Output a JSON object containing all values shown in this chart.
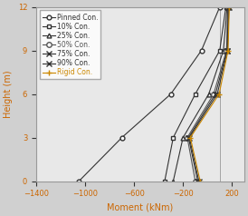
{
  "series": [
    {
      "label": "Pinned Con.",
      "marker": "o",
      "ms": 3.5,
      "mfc": "white",
      "color": "#333333",
      "heights": [
        0,
        3,
        6,
        9,
        12
      ],
      "moments": [
        -1050,
        -700,
        -300,
        -50,
        100
      ]
    },
    {
      "label": "10% Con.",
      "marker": "s",
      "ms": 3.5,
      "mfc": "white",
      "color": "#333333",
      "heights": [
        0,
        3,
        6,
        9,
        12
      ],
      "moments": [
        -350,
        -280,
        -100,
        100,
        150
      ]
    },
    {
      "label": "25% Con.",
      "marker": "^",
      "ms": 3.5,
      "mfc": "white",
      "color": "#333333",
      "heights": [
        0,
        3,
        6,
        9,
        12
      ],
      "moments": [
        -280,
        -200,
        10,
        130,
        160
      ]
    },
    {
      "label": "50% Con.",
      "marker": "o",
      "ms": 4,
      "mfc": "white",
      "color": "#555555",
      "heights": [
        0,
        3,
        6,
        9,
        12
      ],
      "moments": [
        -100,
        -165,
        50,
        155,
        165
      ]
    },
    {
      "label": "75% Con.",
      "marker": "x",
      "ms": 4,
      "mfc": "white",
      "color": "#333333",
      "heights": [
        0,
        3,
        6,
        9,
        12
      ],
      "moments": [
        -80,
        -155,
        65,
        160,
        170
      ]
    },
    {
      "label": "90% Con.",
      "marker": "x",
      "ms": 4,
      "mfc": "white",
      "color": "#333333",
      "heights": [
        0,
        3,
        6,
        9,
        12
      ],
      "moments": [
        -70,
        -148,
        80,
        163,
        175
      ]
    },
    {
      "label": "Rigid Con.",
      "marker": "+",
      "ms": 5,
      "mfc": "white",
      "color": "#cc8800",
      "heights": [
        0,
        3,
        6,
        9,
        12
      ],
      "moments": [
        -60,
        -140,
        95,
        168,
        178
      ]
    }
  ],
  "legend_colors": [
    "#333333",
    "#333333",
    "#333333",
    "#555555",
    "#333333",
    "#333333",
    "#cc8800"
  ],
  "xlabel": "Moment (kNm)",
  "ylabel": "Height (m)",
  "xlim": [
    -1400,
    300
  ],
  "ylim": [
    0,
    12
  ],
  "xticks": [
    -1400,
    -1000,
    -600,
    -200,
    200
  ],
  "yticks": [
    0,
    3,
    6,
    9,
    12
  ],
  "linewidth": 0.8,
  "legend_fontsize": 5.5,
  "axis_fontsize": 7,
  "tick_fontsize": 6,
  "figsize": [
    2.74,
    2.38
  ],
  "dpi": 100,
  "vline_x": 100,
  "bg_color": "#e8e8e8"
}
